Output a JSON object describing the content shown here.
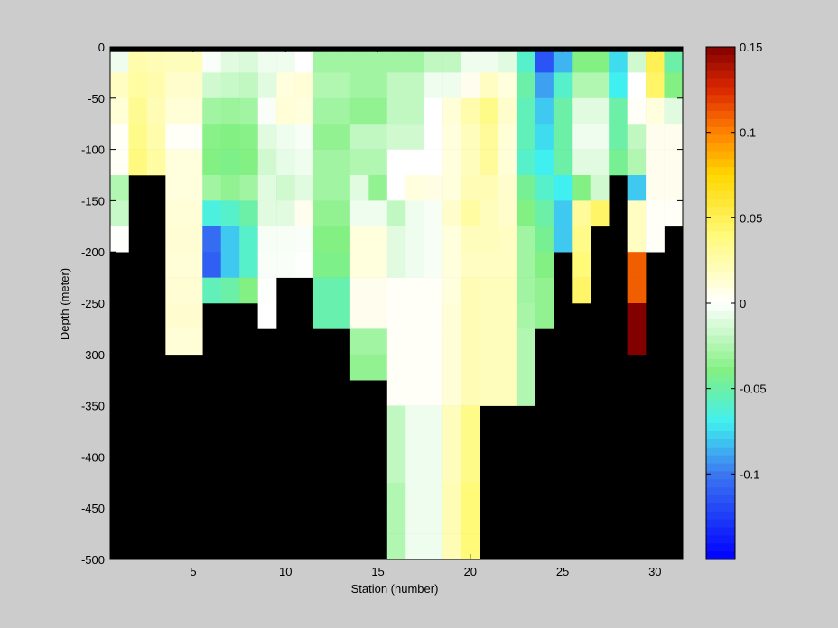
{
  "chart_data": {
    "type": "heatmap",
    "xlabel": "Station (number)",
    "ylabel": "Depth (meter)",
    "xlim": [
      1,
      31
    ],
    "ylim": [
      -500,
      0
    ],
    "xticks": [
      5,
      10,
      15,
      20,
      25,
      30
    ],
    "yticks": [
      0,
      -50,
      -100,
      -150,
      -200,
      -250,
      -300,
      -350,
      -400,
      -450,
      -500
    ],
    "clim": [
      -0.15,
      0.15
    ],
    "colorbar_ticks": [
      -0.1,
      -0.05,
      0,
      0.05,
      0.1,
      0.15
    ],
    "colorbar_tick_labels": [
      "-0.1",
      "-0.05",
      "0",
      "0.05",
      "0.1",
      "0.15"
    ],
    "colormap": "jet-white-center",
    "no_data_color": "#000000",
    "background_color": "#cccccc",
    "cell_depth_step": 25,
    "columns": [
      {
        "station": 1,
        "values": [
          -0.005,
          0.018,
          0.012,
          0.002,
          0.003,
          -0.025,
          -0.018,
          0.001
        ]
      },
      {
        "station": 2,
        "values": [
          0.025,
          0.028,
          0.032,
          0.035,
          0.038
        ]
      },
      {
        "station": 3,
        "values": [
          0.022,
          0.024,
          0.022,
          0.025,
          0.028
        ]
      },
      {
        "station": 4,
        "values": [
          0.02,
          0.015,
          0.012,
          0.002,
          0.01,
          0.01,
          0.012,
          0.013,
          0.012,
          0.013,
          0.014,
          0.012
        ]
      },
      {
        "station": 5,
        "values": [
          0.02,
          0.015,
          0.012,
          0.002,
          0.01,
          0.01,
          0.012,
          0.013,
          0.012,
          0.013,
          0.014,
          0.012
        ]
      },
      {
        "station": 6,
        "values": [
          -0.002,
          -0.015,
          -0.03,
          -0.038,
          -0.04,
          -0.03,
          -0.065,
          -0.105,
          -0.11,
          -0.055
        ]
      },
      {
        "station": 7,
        "values": [
          -0.01,
          -0.018,
          -0.032,
          -0.04,
          -0.042,
          -0.035,
          -0.06,
          -0.08,
          -0.08,
          -0.05
        ]
      },
      {
        "station": 8,
        "values": [
          -0.012,
          -0.02,
          -0.03,
          -0.038,
          -0.04,
          -0.03,
          -0.05,
          -0.06,
          -0.06,
          -0.04
        ]
      },
      {
        "station": 9,
        "values": [
          -0.005,
          -0.01,
          -0.002,
          -0.01,
          -0.015,
          -0.01,
          -0.01,
          -0.003,
          -0.002,
          -0.001,
          0.0
        ]
      },
      {
        "station": 10,
        "values": [
          -0.005,
          0.01,
          0.012,
          -0.005,
          -0.008,
          -0.015,
          -0.01,
          -0.003,
          -0.002
        ]
      },
      {
        "station": 11,
        "values": [
          0.0,
          0.012,
          0.01,
          -0.003,
          -0.005,
          -0.01,
          0.005,
          -0.002,
          -0.001
        ]
      },
      {
        "station": 12,
        "values": [
          -0.03,
          -0.025,
          -0.03,
          -0.035,
          -0.03,
          -0.03,
          -0.035,
          -0.04,
          -0.042,
          -0.052,
          -0.052
        ]
      },
      {
        "station": 13,
        "values": [
          -0.03,
          -0.025,
          -0.03,
          -0.035,
          -0.03,
          -0.03,
          -0.035,
          -0.04,
          -0.042,
          -0.052,
          -0.052
        ]
      },
      {
        "station": 14,
        "values": [
          -0.03,
          -0.03,
          -0.035,
          -0.02,
          -0.025,
          -0.01,
          -0.005,
          0.01,
          0.01,
          0.005,
          0.005,
          -0.03,
          -0.035
        ]
      },
      {
        "station": 15,
        "values": [
          -0.03,
          -0.03,
          -0.035,
          -0.02,
          -0.025,
          -0.035,
          -0.005,
          0.01,
          0.01,
          0.005,
          0.005,
          -0.03,
          -0.035
        ]
      },
      {
        "station": 16,
        "values": [
          -0.03,
          -0.02,
          -0.02,
          -0.015,
          0.0,
          0.0,
          -0.02,
          -0.01,
          -0.01,
          0.002,
          0.002,
          0.002,
          0.002,
          0.002,
          -0.02,
          -0.02,
          -0.02,
          -0.025,
          -0.025,
          -0.025
        ]
      },
      {
        "station": 17,
        "values": [
          -0.03,
          -0.02,
          -0.02,
          -0.015,
          0.0,
          0.01,
          -0.005,
          -0.005,
          -0.005,
          0.002,
          0.002,
          0.002,
          0.002,
          0.002,
          -0.005,
          -0.005,
          -0.005,
          -0.005,
          -0.005,
          -0.005
        ]
      },
      {
        "station": 18,
        "values": [
          -0.02,
          -0.005,
          0.0,
          0.0,
          0.0,
          0.008,
          -0.003,
          -0.003,
          -0.003,
          0.002,
          0.002,
          0.002,
          0.002,
          0.002,
          -0.005,
          -0.005,
          -0.005,
          -0.005,
          -0.005,
          -0.005
        ]
      },
      {
        "station": 19,
        "values": [
          -0.02,
          -0.005,
          0.012,
          0.01,
          0.01,
          0.01,
          0.015,
          0.01,
          0.01,
          0.01,
          0.012,
          0.012,
          0.012,
          0.012,
          0.02,
          0.02,
          0.02,
          0.022,
          0.022,
          0.022
        ]
      },
      {
        "station": 20,
        "values": [
          -0.005,
          0.005,
          0.025,
          0.02,
          0.02,
          0.022,
          0.028,
          0.02,
          0.018,
          0.022,
          0.022,
          0.022,
          0.022,
          0.022,
          0.035,
          0.035,
          0.035,
          0.04,
          0.04,
          0.04
        ]
      },
      {
        "station": 21,
        "values": [
          -0.005,
          0.018,
          0.035,
          0.03,
          0.03,
          0.022,
          0.02,
          0.02,
          0.018,
          0.02,
          0.02,
          0.02,
          0.02,
          0.02
        ]
      },
      {
        "station": 22,
        "values": [
          -0.01,
          0.01,
          0.015,
          0.012,
          0.012,
          0.015,
          0.015,
          0.018,
          0.018,
          0.02,
          0.02,
          0.02,
          0.02,
          0.02
        ]
      },
      {
        "station": 23,
        "values": [
          -0.06,
          -0.05,
          -0.055,
          -0.055,
          -0.06,
          -0.045,
          -0.04,
          -0.03,
          -0.03,
          -0.03,
          -0.028,
          -0.025,
          -0.025,
          -0.025
        ]
      },
      {
        "station": 24,
        "values": [
          -0.115,
          -0.09,
          -0.08,
          -0.075,
          -0.07,
          -0.06,
          -0.05,
          -0.045,
          -0.04,
          -0.035,
          -0.035
        ]
      },
      {
        "station": 25,
        "values": [
          -0.085,
          -0.06,
          -0.05,
          -0.05,
          -0.05,
          -0.07,
          -0.08,
          -0.08
        ]
      },
      {
        "station": 26,
        "values": [
          -0.04,
          -0.025,
          -0.01,
          -0.005,
          -0.01,
          -0.04,
          0.03,
          0.035,
          0.04,
          0.045
        ]
      },
      {
        "station": 27,
        "values": [
          -0.04,
          -0.025,
          -0.01,
          -0.005,
          -0.01,
          -0.015,
          0.045
        ]
      },
      {
        "station": 28,
        "values": [
          -0.075,
          -0.07,
          -0.05,
          -0.05,
          -0.045
        ]
      },
      {
        "station": 29,
        "values": [
          -0.015,
          0.0,
          0.002,
          -0.02,
          -0.025,
          -0.08,
          0.018,
          0.018,
          0.11,
          0.11,
          0.15,
          0.15
        ]
      },
      {
        "station": 30,
        "values": [
          0.05,
          0.045,
          0.01,
          0.005,
          0.005,
          0.005,
          0.002,
          0.002
        ]
      },
      {
        "station": 31,
        "values": [
          -0.05,
          -0.04,
          -0.01,
          0.005,
          0.005,
          0.005,
          0.002
        ]
      }
    ]
  }
}
